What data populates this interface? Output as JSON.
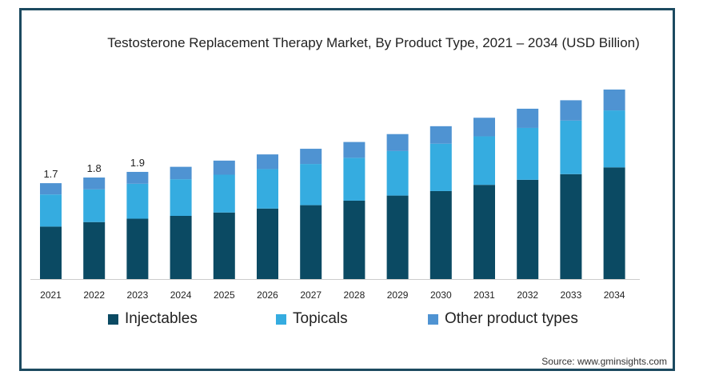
{
  "chart_data": {
    "type": "bar",
    "stacked": true,
    "title": "Testosterone Replacement Therapy Market, By Product Type, 2021 – 2034 (USD Billion)",
    "categories": [
      "2021",
      "2022",
      "2023",
      "2024",
      "2025",
      "2026",
      "2027",
      "2028",
      "2029",
      "2030",
      "2031",
      "2032",
      "2033",
      "2034"
    ],
    "series": [
      {
        "name": "Injectables",
        "color": "#0b4a63",
        "values": [
          0.93,
          1.01,
          1.07,
          1.12,
          1.18,
          1.25,
          1.31,
          1.39,
          1.48,
          1.56,
          1.67,
          1.76,
          1.86,
          1.98
        ]
      },
      {
        "name": "Topicals",
        "color": "#35ace0",
        "values": [
          0.57,
          0.58,
          0.62,
          0.65,
          0.67,
          0.7,
          0.73,
          0.76,
          0.79,
          0.84,
          0.86,
          0.92,
          0.95,
          1.01
        ]
      },
      {
        "name": "Other product types",
        "color": "#4f93d2",
        "values": [
          0.2,
          0.21,
          0.21,
          0.22,
          0.25,
          0.26,
          0.27,
          0.28,
          0.3,
          0.31,
          0.33,
          0.34,
          0.36,
          0.37
        ]
      }
    ],
    "data_labels": [
      "1.7",
      "1.8",
      "1.9"
    ],
    "ylim": [
      0,
      3.7
    ],
    "grid": false,
    "legend_position": "bottom"
  },
  "source": "Source: www.gminsights.com"
}
